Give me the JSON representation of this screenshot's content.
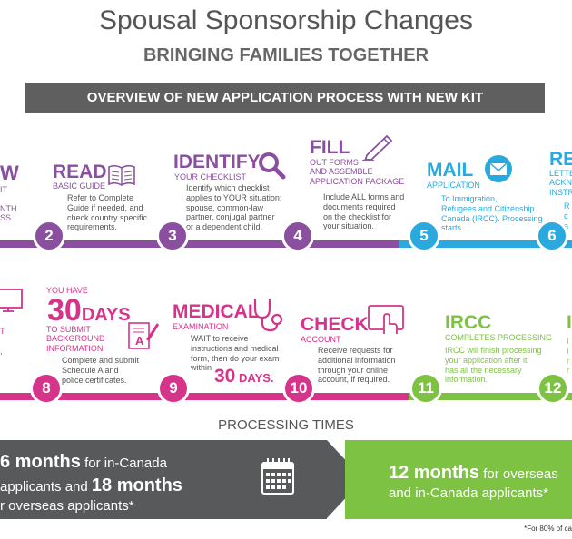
{
  "header": {
    "title": "Spousal Sponsorship Changes",
    "subtitle": "BRINGING FAMILIES TOGETHER",
    "banner": "OVERVIEW OF NEW APPLICATION PROCESS WITH NEW KIT"
  },
  "row1": {
    "partial_left": {
      "title": "W",
      "sub": "IT\n\nNTH\nSS"
    },
    "read": {
      "num": "2",
      "title": "READ",
      "sub": "BASIC GUIDE",
      "desc": "Refer to Complete\nGuide if needed, and\ncheck country specific\nrequirements."
    },
    "identify": {
      "num": "3",
      "title": "IDENTIFY",
      "sub": "YOUR CHECKLIST",
      "desc": "Identify which checklist\napplies to YOUR situation:\nspouse, common-law\npartner, conjugal partner\nor a dependent child."
    },
    "fill": {
      "num": "4",
      "title": "FILL",
      "sub": "OUT FORMS\nAND ASSEMBLE\nAPPLICATION PACKAGE",
      "desc": "Include ALL forms and\ndocuments required\non the checklist for\nyour situation."
    },
    "mail": {
      "num": "5",
      "title": "MAIL",
      "sub": "APPLICATION",
      "desc": "To Immigration,\nRefugees and Citizenship\nCanada (IRCC). Processing\nstarts."
    },
    "partial_right": {
      "num": "6",
      "title": "RE",
      "sub": "LETTE\nACKN\nINSTR",
      "desc": "R\nc\na"
    }
  },
  "row2": {
    "partial_left": {
      "desc": "T\n\n,"
    },
    "thirty": {
      "num": "8",
      "pre": "YOU HAVE",
      "big": "30",
      "bigword": "DAYS",
      "sub": "TO SUBMIT\nBACKGROUND\nINFORMATION",
      "desc": "Complete and submit\nSchedule A and\npolice certificates.",
      "doc_letter": "A"
    },
    "medical": {
      "num": "9",
      "title": "MEDICAL",
      "sub": "EXAMINATION",
      "desc": "WAIT to receive\ninstructions and medical\nform, then do your exam\nwithin",
      "within_big": "30",
      "within_word": "DAYS."
    },
    "check": {
      "num": "10",
      "title": "CHECK",
      "sub": "ACCOUNT",
      "desc": "Receive requests for\nadditional information\nthrough your online\naccount, if required."
    },
    "ircc": {
      "num": "11",
      "title": "IRCC",
      "sub": "COMPLETES PROCESSING",
      "desc": "IRCC will finish processing\nyour application after it\nhas all the necessary\ninformation."
    },
    "partial_right": {
      "num": "12",
      "title": "I",
      "desc": "I\nI\nr\nr"
    }
  },
  "processing": {
    "title": "PROCESSING TIMES",
    "left_big1": "6 months",
    "left_t1": " for in-Canada",
    "left_t2a": "applicants and ",
    "left_big2": "18 months",
    "left_t3": "r overseas applicants*",
    "right_big": "12 months",
    "right_t1": " for overseas",
    "right_t2": "and in-Canada applicants*",
    "footnote": "*For 80% of ca"
  },
  "colors": {
    "purple": "#8b4f9f",
    "magenta": "#d6338a",
    "blue": "#2aa9df",
    "green": "#7dc243",
    "dark": "#58595b",
    "banner": "#5f5f5f"
  }
}
